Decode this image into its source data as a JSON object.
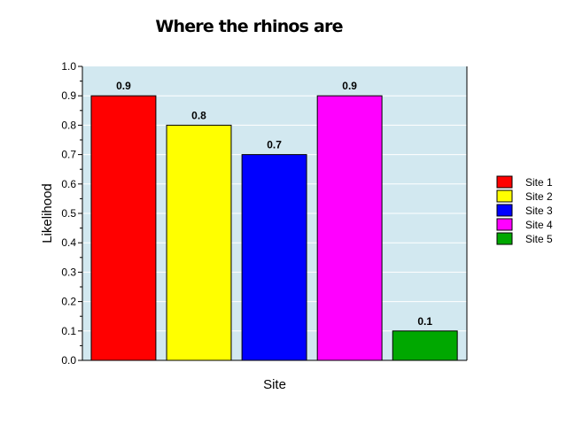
{
  "chart_data": {
    "type": "bar",
    "title": "Where the rhinos are",
    "xlabel": "Site",
    "ylabel": "Likelihood",
    "ylim": [
      0,
      1.0
    ],
    "yticks": [
      "0.0",
      "0.1",
      "0.2",
      "0.3",
      "0.4",
      "0.5",
      "0.6",
      "0.7",
      "0.8",
      "0.9",
      "1.0"
    ],
    "grid": true,
    "legend_position": "right",
    "plot_background": "#d2e8f0",
    "series": [
      {
        "name": "Site 1",
        "value": 0.9,
        "label": "0.9",
        "color": "#ff0000"
      },
      {
        "name": "Site 2",
        "value": 0.8,
        "label": "0.8",
        "color": "#ffff00"
      },
      {
        "name": "Site 3",
        "value": 0.7,
        "label": "0.7",
        "color": "#0000ff"
      },
      {
        "name": "Site 4",
        "value": 0.9,
        "label": "0.9",
        "color": "#ff00ff"
      },
      {
        "name": "Site 5",
        "value": 0.1,
        "label": "0.1",
        "color": "#00a800"
      }
    ]
  }
}
